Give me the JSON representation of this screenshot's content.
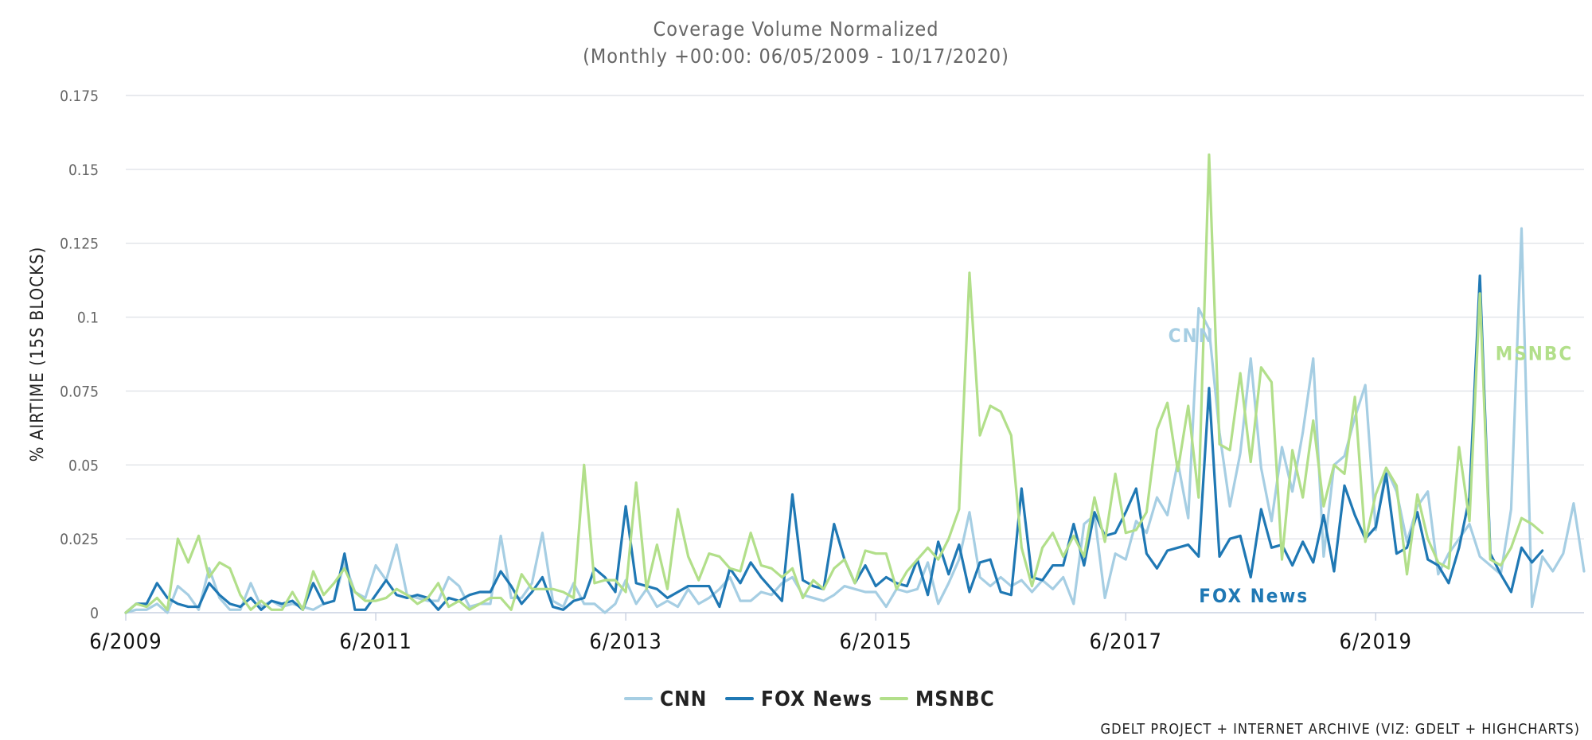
{
  "chart_data": {
    "type": "line",
    "title": "Coverage Volume Normalized",
    "subtitle": "(Monthly +00:00: 06/05/2009 - 10/17/2020)",
    "ylabel": "% AIRTIME (15S BLOCKS)",
    "xlabel": "",
    "ylim": [
      0,
      0.175
    ],
    "y_ticks": [
      0,
      0.025,
      0.05,
      0.075,
      0.1,
      0.125,
      0.15,
      0.175
    ],
    "y_tick_labels": [
      "0",
      "0.025",
      "0.05",
      "0.075",
      "0.1",
      "0.125",
      "0.15",
      "0.175"
    ],
    "x_start": "2009-06",
    "x_end": "2020-10",
    "x_tick_labels": [
      "6/2009",
      "6/2011",
      "6/2013",
      "6/2015",
      "6/2017",
      "6/2019"
    ],
    "grid": true,
    "legend_position": "bottom-center",
    "credit": "GDELT PROJECT + INTERNET ARCHIVE (VIZ: GDELT + HIGHCHARTS)",
    "series": [
      {
        "name": "CNN",
        "label": "CNN",
        "color": "#a6cee3",
        "values": [
          0.0,
          0.001,
          0.001,
          0.003,
          0.0,
          0.009,
          0.006,
          0.001,
          0.015,
          0.005,
          0.001,
          0.001,
          0.01,
          0.002,
          0.004,
          0.002,
          0.003,
          0.002,
          0.001,
          0.003,
          0.004,
          0.017,
          0.007,
          0.005,
          0.016,
          0.011,
          0.023,
          0.006,
          0.005,
          0.004,
          0.004,
          0.012,
          0.009,
          0.002,
          0.003,
          0.003,
          0.026,
          0.005,
          0.005,
          0.01,
          0.027,
          0.004,
          0.002,
          0.01,
          0.003,
          0.003,
          0.0,
          0.003,
          0.011,
          0.003,
          0.008,
          0.002,
          0.004,
          0.002,
          0.008,
          0.003,
          0.005,
          0.008,
          0.012,
          0.004,
          0.004,
          0.007,
          0.006,
          0.01,
          0.012,
          0.006,
          0.005,
          0.004,
          0.006,
          0.009,
          0.008,
          0.007,
          0.007,
          0.002,
          0.008,
          0.007,
          0.008,
          0.017,
          0.003,
          0.01,
          0.018,
          0.034,
          0.012,
          0.009,
          0.012,
          0.009,
          0.011,
          0.007,
          0.011,
          0.008,
          0.012,
          0.003,
          0.03,
          0.033,
          0.005,
          0.02,
          0.018,
          0.031,
          0.027,
          0.039,
          0.033,
          0.051,
          0.032,
          0.103,
          0.096,
          0.061,
          0.036,
          0.054,
          0.086,
          0.049,
          0.031,
          0.056,
          0.041,
          0.061,
          0.086,
          0.019,
          0.05,
          0.053,
          0.066,
          0.077,
          0.028,
          0.049,
          0.041,
          0.024,
          0.036,
          0.041,
          0.013,
          0.02,
          0.025,
          0.03,
          0.019,
          0.016,
          0.013,
          0.035,
          0.13,
          0.002,
          0.019,
          0.014,
          0.02,
          0.037,
          0.014
        ]
      },
      {
        "name": "FOX News",
        "label": "FOX News",
        "color": "#1f78b4",
        "values": [
          0.0,
          0.003,
          0.003,
          0.01,
          0.005,
          0.003,
          0.002,
          0.002,
          0.01,
          0.006,
          0.003,
          0.002,
          0.005,
          0.001,
          0.004,
          0.003,
          0.004,
          0.001,
          0.01,
          0.003,
          0.004,
          0.02,
          0.001,
          0.001,
          0.006,
          0.011,
          0.006,
          0.005,
          0.006,
          0.005,
          0.001,
          0.005,
          0.004,
          0.006,
          0.007,
          0.007,
          0.014,
          0.009,
          0.003,
          0.007,
          0.012,
          0.002,
          0.001,
          0.004,
          0.005,
          0.015,
          0.012,
          0.007,
          0.036,
          0.01,
          0.009,
          0.008,
          0.005,
          0.007,
          0.009,
          0.009,
          0.009,
          0.002,
          0.015,
          0.01,
          0.017,
          0.012,
          0.008,
          0.004,
          0.04,
          0.011,
          0.009,
          0.008,
          0.03,
          0.018,
          0.01,
          0.016,
          0.009,
          0.012,
          0.01,
          0.009,
          0.018,
          0.006,
          0.024,
          0.013,
          0.023,
          0.007,
          0.017,
          0.018,
          0.007,
          0.006,
          0.042,
          0.012,
          0.011,
          0.016,
          0.016,
          0.03,
          0.016,
          0.034,
          0.026,
          0.027,
          0.034,
          0.042,
          0.02,
          0.015,
          0.021,
          0.022,
          0.023,
          0.019,
          0.076,
          0.019,
          0.025,
          0.026,
          0.012,
          0.035,
          0.022,
          0.023,
          0.016,
          0.024,
          0.017,
          0.033,
          0.014,
          0.043,
          0.033,
          0.025,
          0.029,
          0.047,
          0.02,
          0.022,
          0.034,
          0.018,
          0.016,
          0.01,
          0.022,
          0.039,
          0.114,
          0.02,
          0.013,
          0.007,
          0.022,
          0.017,
          0.021
        ]
      },
      {
        "name": "MSNBC",
        "label": "MSNBC",
        "color": "#b2df8a",
        "values": [
          0.0,
          0.003,
          0.002,
          0.005,
          0.001,
          0.025,
          0.017,
          0.026,
          0.012,
          0.017,
          0.015,
          0.006,
          0.001,
          0.004,
          0.001,
          0.001,
          0.007,
          0.001,
          0.014,
          0.006,
          0.01,
          0.015,
          0.007,
          0.004,
          0.004,
          0.005,
          0.008,
          0.006,
          0.003,
          0.005,
          0.01,
          0.002,
          0.004,
          0.001,
          0.003,
          0.005,
          0.005,
          0.001,
          0.013,
          0.008,
          0.008,
          0.008,
          0.007,
          0.005,
          0.05,
          0.01,
          0.011,
          0.011,
          0.007,
          0.044,
          0.008,
          0.023,
          0.008,
          0.035,
          0.019,
          0.011,
          0.02,
          0.019,
          0.015,
          0.014,
          0.027,
          0.016,
          0.015,
          0.012,
          0.015,
          0.005,
          0.011,
          0.008,
          0.015,
          0.018,
          0.01,
          0.021,
          0.02,
          0.02,
          0.008,
          0.014,
          0.018,
          0.022,
          0.018,
          0.025,
          0.035,
          0.115,
          0.06,
          0.07,
          0.068,
          0.06,
          0.022,
          0.009,
          0.022,
          0.027,
          0.019,
          0.026,
          0.019,
          0.039,
          0.024,
          0.047,
          0.027,
          0.028,
          0.034,
          0.062,
          0.071,
          0.048,
          0.07,
          0.039,
          0.155,
          0.057,
          0.055,
          0.081,
          0.051,
          0.083,
          0.078,
          0.018,
          0.055,
          0.039,
          0.065,
          0.036,
          0.05,
          0.047,
          0.073,
          0.024,
          0.04,
          0.049,
          0.043,
          0.013,
          0.04,
          0.025,
          0.017,
          0.015,
          0.056,
          0.031,
          0.108,
          0.018,
          0.016,
          0.022,
          0.032,
          0.03,
          0.027
        ]
      }
    ]
  }
}
